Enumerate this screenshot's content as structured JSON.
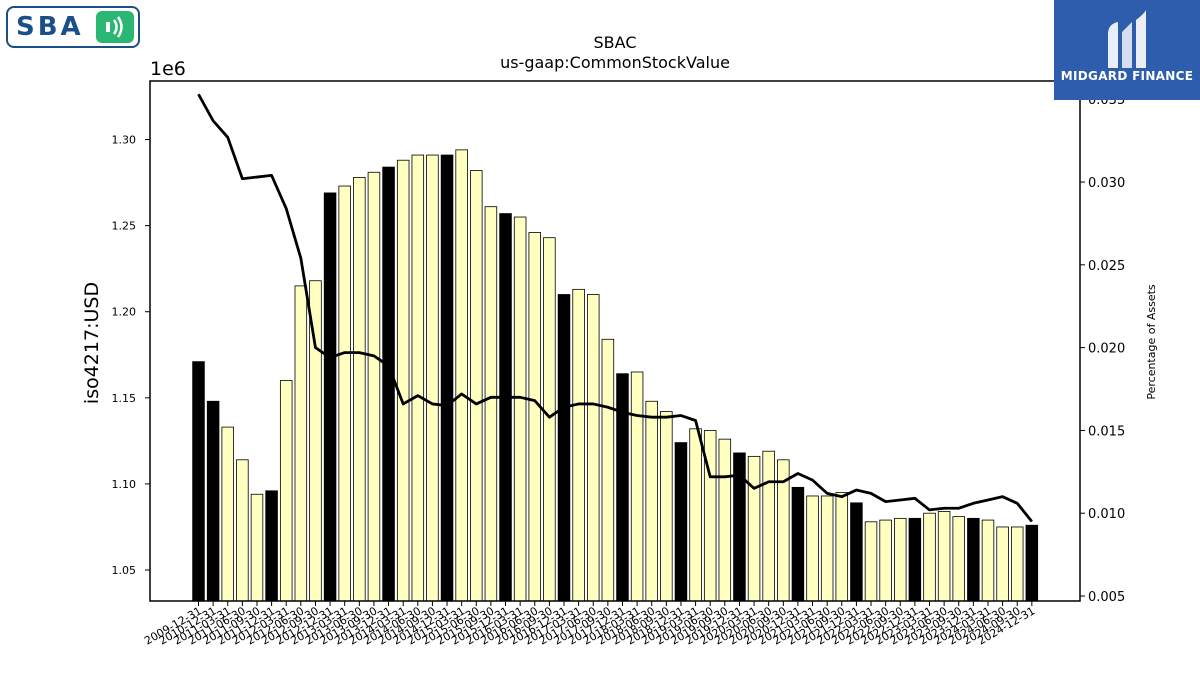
{
  "logos": {
    "left_name": "SBA",
    "right_name": "MIDGARD FINANCE"
  },
  "chart_data": {
    "type": "bar",
    "title": "SBAC",
    "subtitle": "us-gaap:CommonStockValue",
    "ylabel": "iso4217:USD",
    "y2label": "Percentage of Assets",
    "offset_label": "1e6",
    "ylim": [
      1032000,
      1334000
    ],
    "y2lim": [
      0.0047,
      0.0361
    ],
    "yticks": [
      1.05,
      1.1,
      1.15,
      1.2,
      1.25,
      1.3
    ],
    "y2ticks": [
      0.005,
      0.01,
      0.015,
      0.02,
      0.025,
      0.03,
      0.035
    ],
    "grid": false,
    "categories": [
      "2009-12-31",
      "2010-12-31",
      "2011-03-31",
      "2011-06-30",
      "2011-09-30",
      "2011-12-31",
      "2012-03-31",
      "2012-06-30",
      "2012-09-30",
      "2012-12-31",
      "2013-03-31",
      "2013-06-30",
      "2013-09-30",
      "2013-12-31",
      "2014-03-31",
      "2014-06-30",
      "2014-09-30",
      "2014-12-31",
      "2015-03-31",
      "2015-06-30",
      "2015-09-30",
      "2015-12-31",
      "2016-03-31",
      "2016-06-30",
      "2016-09-30",
      "2016-12-31",
      "2017-03-31",
      "2017-06-30",
      "2017-09-30",
      "2017-12-31",
      "2018-03-31",
      "2018-06-30",
      "2018-09-30",
      "2018-12-31",
      "2019-03-31",
      "2019-06-30",
      "2019-09-30",
      "2019-12-31",
      "2020-03-31",
      "2020-06-30",
      "2020-09-30",
      "2020-12-31",
      "2021-03-31",
      "2021-06-30",
      "2021-09-30",
      "2021-12-31",
      "2022-03-31",
      "2022-06-30",
      "2022-09-30",
      "2022-12-31",
      "2023-03-31",
      "2023-06-30",
      "2023-09-30",
      "2023-12-31",
      "2024-03-31",
      "2024-06-30",
      "2024-09-30",
      "2024-12-31"
    ],
    "series": [
      {
        "kind": "bar",
        "values": [
          1171000,
          1148000,
          1133000,
          1114000,
          1094000,
          1096000,
          1160000,
          1215000,
          1218000,
          1269000,
          1273000,
          1278000,
          1281000,
          1284000,
          1288000,
          1291000,
          1291000,
          1291000,
          1294000,
          1282000,
          1261000,
          1257000,
          1255000,
          1246000,
          1243000,
          1210000,
          1213000,
          1210000,
          1184000,
          1164000,
          1165000,
          1148000,
          1142000,
          1124000,
          1132000,
          1131000,
          1126000,
          1118000,
          1116000,
          1119000,
          1114000,
          1098000,
          1093000,
          1093000,
          1095000,
          1089000,
          1078000,
          1079000,
          1080000,
          1080000,
          1083000,
          1084000,
          1081000,
          1080000,
          1079000,
          1075000,
          1075000,
          1076000
        ],
        "annual": [
          true,
          true,
          false,
          false,
          false,
          true,
          false,
          false,
          false,
          true,
          false,
          false,
          false,
          true,
          false,
          false,
          false,
          true,
          false,
          false,
          false,
          true,
          false,
          false,
          false,
          true,
          false,
          false,
          false,
          true,
          false,
          false,
          false,
          true,
          false,
          false,
          false,
          true,
          false,
          false,
          false,
          true,
          false,
          false,
          false,
          true,
          false,
          false,
          false,
          true,
          false,
          false,
          false,
          true,
          false,
          false,
          false,
          true
        ]
      },
      {
        "kind": "line",
        "values": [
          0.0353,
          0.0337,
          0.0327,
          0.0302,
          0.0303,
          0.0304,
          0.0284,
          0.0254,
          0.02,
          0.0194,
          0.0197,
          0.0197,
          0.0195,
          0.0189,
          0.0166,
          0.0171,
          0.0166,
          0.0165,
          0.0172,
          0.0166,
          0.017,
          0.017,
          0.017,
          0.0168,
          0.0158,
          0.0164,
          0.0166,
          0.0166,
          0.0164,
          0.0161,
          0.0159,
          0.0158,
          0.0158,
          0.0159,
          0.0156,
          0.0122,
          0.0122,
          0.0123,
          0.0115,
          0.0119,
          0.0119,
          0.0124,
          0.012,
          0.0112,
          0.011,
          0.0114,
          0.0112,
          0.0107,
          0.0108,
          0.0109,
          0.0102,
          0.0103,
          0.0103,
          0.0106,
          0.0108,
          0.011,
          0.0106,
          0.0095
        ]
      }
    ]
  },
  "colors": {
    "annual_bar": "#000000",
    "quarter_bar": "#ffffc0",
    "line": "#000000",
    "sba_blue": "#1b4f8a",
    "sba_green": "#2bb673",
    "midgard_blue": "#2d5dac"
  }
}
